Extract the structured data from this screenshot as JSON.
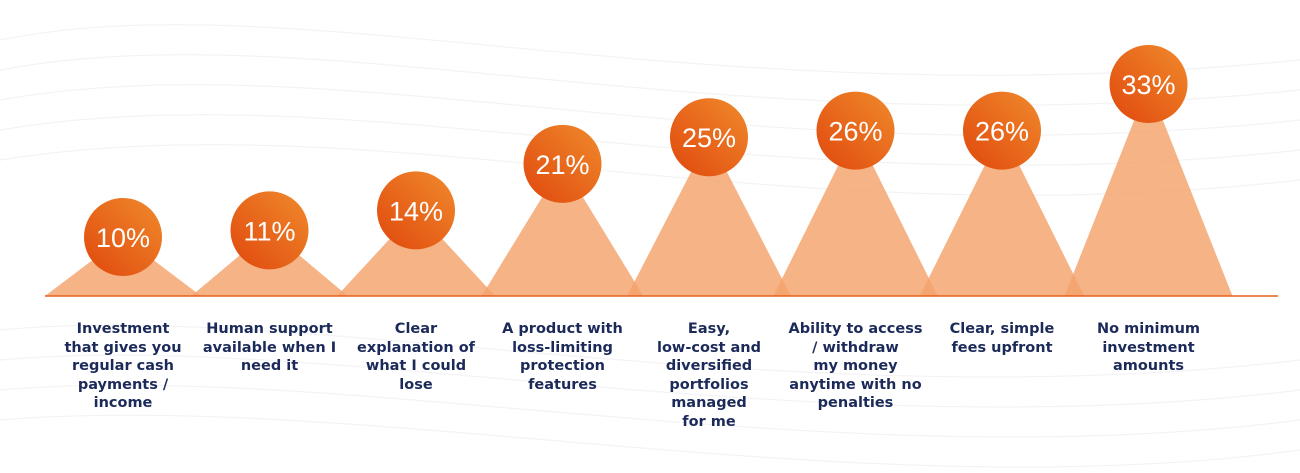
{
  "chart_data": {
    "type": "bar",
    "title": "",
    "xlabel": "",
    "ylabel": "",
    "unit": "%",
    "ylim": [
      0,
      35
    ],
    "grid": false,
    "legend": "none",
    "categories": [
      "Investment\nthat gives you\nregular cash\npayments /\nincome",
      "Human support\navailable when I\nneed it",
      "Clear\nexplanation of\nwhat I could\nlose",
      "A product with\nloss-limiting\nprotection\nfeatures",
      "Easy,\nlow-cost and\ndiversified\nportfolios\nmanaged\nfor me",
      "Ability to access\n/ withdraw\nmy money\nanytime with no\npenalties",
      "Clear, simple\nfees upfront",
      "No minimum\ninvestment\namounts"
    ],
    "values": [
      10,
      11,
      14,
      21,
      25,
      26,
      26,
      33
    ],
    "value_labels": [
      "10%",
      "11%",
      "14%",
      "21%",
      "25%",
      "26%",
      "26%",
      "33%"
    ],
    "colors": {
      "cone": "#f4a26a",
      "bubble_dark": "#e0480d",
      "bubble_light": "#f08a2c",
      "baseline": "#e8611f",
      "label_text": "#1c2a5a",
      "value_text": "#ffffff"
    }
  }
}
